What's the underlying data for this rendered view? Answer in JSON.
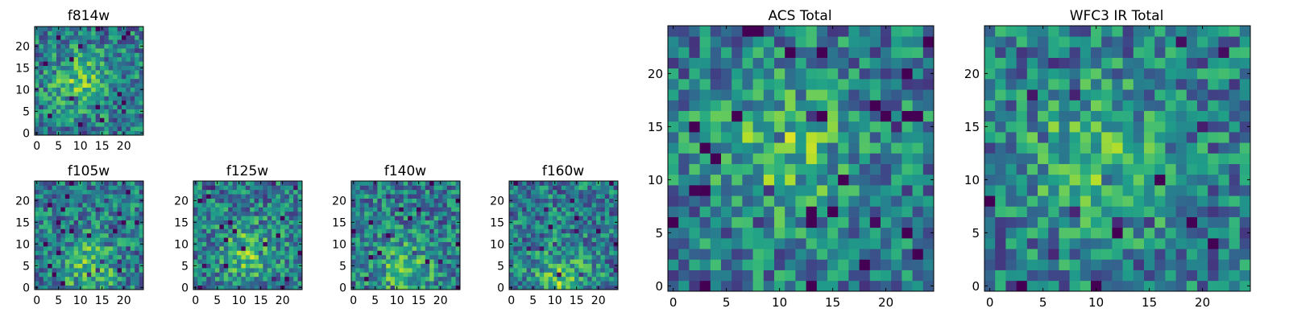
{
  "chart_data": [
    {
      "type": "heatmap",
      "title": "f814w",
      "grid": false,
      "xlim": [
        -0.5,
        24.5
      ],
      "ylim": [
        -0.5,
        24.5
      ],
      "xticks": [
        0,
        5,
        10,
        15,
        20
      ],
      "yticks": [
        0,
        5,
        10,
        15,
        20
      ],
      "grid_size": [
        25,
        25
      ],
      "colormap": "viridis",
      "peak": {
        "x": 10,
        "y": 12
      },
      "colors": {
        "low": "#440154",
        "mid": "#21918c",
        "high": "#fde725"
      }
    },
    {
      "type": "heatmap",
      "title": "f105w",
      "grid": false,
      "xlim": [
        -0.5,
        24.5
      ],
      "ylim": [
        -0.5,
        24.5
      ],
      "xticks": [
        0,
        5,
        10,
        15,
        20
      ],
      "yticks": [
        0,
        5,
        10,
        15,
        20
      ],
      "grid_size": [
        25,
        25
      ],
      "colormap": "viridis",
      "peak": {
        "x": 12,
        "y": 5
      },
      "colors": {
        "low": "#440154",
        "mid": "#21918c",
        "high": "#fde725"
      }
    },
    {
      "type": "heatmap",
      "title": "f125w",
      "grid": false,
      "xlim": [
        -0.5,
        24.5
      ],
      "ylim": [
        -0.5,
        24.5
      ],
      "xticks": [
        0,
        5,
        10,
        15,
        20
      ],
      "yticks": [
        0,
        5,
        10,
        15,
        20
      ],
      "grid_size": [
        25,
        25
      ],
      "colormap": "viridis",
      "peak": {
        "x": 12,
        "y": 8
      },
      "colors": {
        "low": "#440154",
        "mid": "#21918c",
        "high": "#fde725"
      }
    },
    {
      "type": "heatmap",
      "title": "f140w",
      "grid": false,
      "xlim": [
        -0.5,
        24.5
      ],
      "ylim": [
        -0.5,
        24.5
      ],
      "xticks": [
        0,
        5,
        10,
        15,
        20
      ],
      "yticks": [
        0,
        5,
        10,
        15,
        20
      ],
      "grid_size": [
        25,
        25
      ],
      "colormap": "viridis",
      "peak": {
        "x": 12,
        "y": 4
      },
      "colors": {
        "low": "#440154",
        "mid": "#21918c",
        "high": "#fde725"
      }
    },
    {
      "type": "heatmap",
      "title": "f160w",
      "grid": false,
      "xlim": [
        -0.5,
        24.5
      ],
      "ylim": [
        -0.5,
        24.5
      ],
      "xticks": [
        0,
        5,
        10,
        15,
        20
      ],
      "yticks": [
        0,
        5,
        10,
        15,
        20
      ],
      "grid_size": [
        25,
        25
      ],
      "colormap": "viridis",
      "peak": {
        "x": 12,
        "y": 2
      },
      "colors": {
        "low": "#440154",
        "mid": "#21918c",
        "high": "#fde725"
      }
    },
    {
      "type": "heatmap",
      "title": "ACS Total",
      "grid": false,
      "xlim": [
        -0.5,
        24.5
      ],
      "ylim": [
        -0.5,
        24.5
      ],
      "xticks": [
        0,
        5,
        10,
        15,
        20
      ],
      "yticks": [
        0,
        5,
        10,
        15,
        20
      ],
      "grid_size": [
        25,
        25
      ],
      "colormap": "viridis",
      "peak": {
        "x": 10,
        "y": 13
      },
      "colors": {
        "low": "#440154",
        "mid": "#21918c",
        "high": "#fde725"
      }
    },
    {
      "type": "heatmap",
      "title": "WFC3 IR Total",
      "grid": false,
      "xlim": [
        -0.5,
        24.5
      ],
      "ylim": [
        -0.5,
        24.5
      ],
      "xticks": [
        0,
        5,
        10,
        15,
        20
      ],
      "yticks": [
        0,
        5,
        10,
        15,
        20
      ],
      "grid_size": [
        25,
        25
      ],
      "colormap": "viridis",
      "peak": {
        "x": 10,
        "y": 12
      },
      "colors": {
        "low": "#440154",
        "mid": "#21918c",
        "high": "#fde725"
      }
    }
  ]
}
